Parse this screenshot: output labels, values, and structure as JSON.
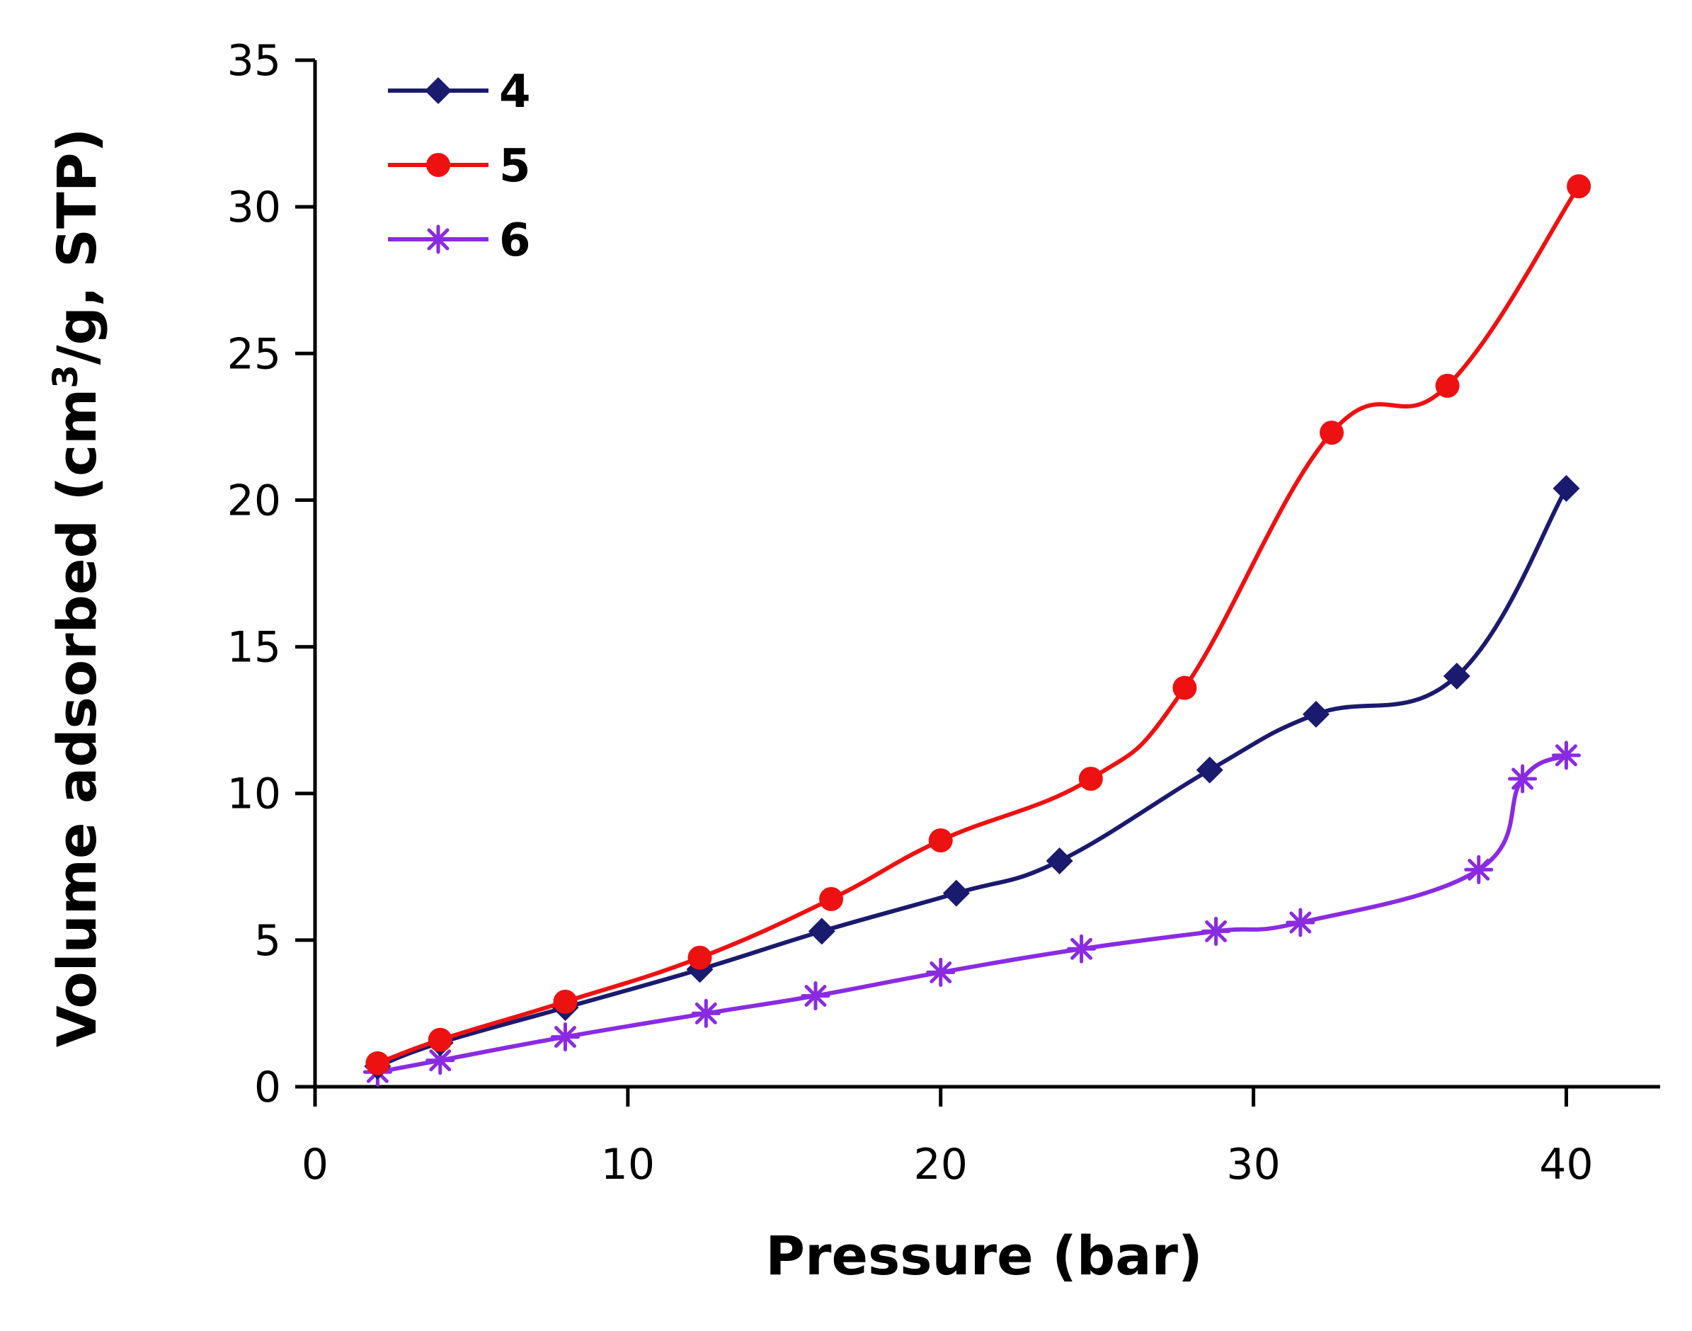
{
  "chart_data": {
    "type": "line",
    "title": "",
    "xlabel": "Pressure (bar)",
    "ylabel_main": "Volume adsorbed (cm",
    "ylabel_sup": "3",
    "ylabel_rest": "/g, STP)",
    "xlim": [
      0,
      43
    ],
    "ylim": [
      0,
      35
    ],
    "xticks": [
      0,
      10,
      20,
      30,
      40
    ],
    "yticks": [
      0,
      5,
      10,
      15,
      20,
      25,
      30,
      35
    ],
    "legend_position": "top-left",
    "series": [
      {
        "name": "4",
        "color": "#1a1a6e",
        "marker": "diamond",
        "x": [
          2.0,
          4.0,
          8.0,
          12.3,
          16.2,
          20.5,
          23.8,
          28.6,
          32.0,
          36.5,
          40.0
        ],
        "y": [
          0.7,
          1.5,
          2.7,
          4.0,
          5.3,
          6.6,
          7.7,
          10.8,
          12.7,
          14.0,
          20.4
        ]
      },
      {
        "name": "5",
        "color": "#ee1111",
        "marker": "circle",
        "x": [
          2.0,
          4.0,
          8.0,
          12.3,
          16.5,
          20.0,
          24.8,
          27.8,
          32.5,
          36.2,
          40.4
        ],
        "y": [
          0.8,
          1.6,
          2.9,
          4.4,
          6.4,
          8.4,
          10.5,
          13.6,
          22.3,
          23.9,
          30.7
        ]
      },
      {
        "name": "6",
        "color": "#8a2be2",
        "marker": "star",
        "x": [
          2.0,
          4.0,
          8.0,
          12.5,
          16.0,
          20.0,
          24.5,
          28.8,
          31.5,
          37.2,
          38.6,
          40.0
        ],
        "y": [
          0.5,
          0.9,
          1.7,
          2.5,
          3.1,
          3.9,
          4.7,
          5.3,
          5.6,
          7.4,
          10.5,
          11.3
        ]
      }
    ]
  }
}
